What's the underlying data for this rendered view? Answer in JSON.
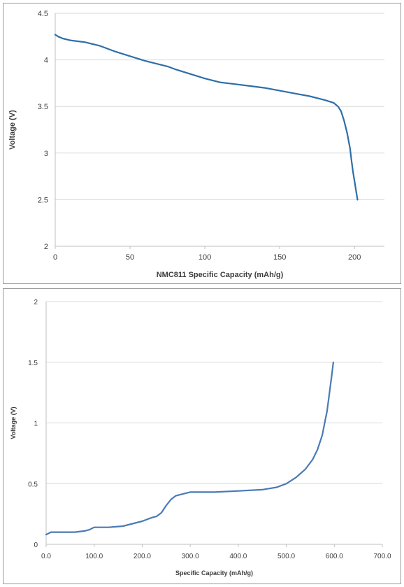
{
  "chart_data": [
    {
      "type": "line",
      "title": "",
      "xlabel": "NMC811 Specific Capacity (mAh/g)",
      "ylabel": "Voltage (V)",
      "xlim": [
        0,
        220
      ],
      "ylim": [
        2,
        4.5
      ],
      "xticks": [
        0,
        50,
        100,
        150,
        200
      ],
      "yticks": [
        2,
        2.5,
        3,
        3.5,
        4,
        4.5
      ],
      "xtick_labels": [
        "0",
        "50",
        "100",
        "150",
        "200"
      ],
      "ytick_labels": [
        "2",
        "2.5",
        "3",
        "3.5",
        "4",
        "4.5"
      ],
      "grid": true,
      "line_color": "#2e6fa8",
      "series": [
        {
          "x": [
            0,
            2,
            5,
            10,
            20,
            30,
            40,
            50,
            60,
            70,
            75,
            80,
            90,
            100,
            110,
            120,
            130,
            140,
            150,
            160,
            170,
            180,
            186,
            189,
            191,
            193,
            195,
            197,
            198,
            199,
            200,
            201,
            202
          ],
          "y": [
            4.27,
            4.25,
            4.23,
            4.21,
            4.19,
            4.15,
            4.09,
            4.04,
            3.99,
            3.95,
            3.93,
            3.9,
            3.85,
            3.8,
            3.76,
            3.74,
            3.72,
            3.7,
            3.67,
            3.64,
            3.61,
            3.57,
            3.54,
            3.5,
            3.45,
            3.35,
            3.22,
            3.05,
            2.92,
            2.8,
            2.7,
            2.6,
            2.5
          ]
        }
      ]
    },
    {
      "type": "line",
      "title": "",
      "xlabel": "Specific Capacity (mAh/g)",
      "ylabel": "Voltage (V)",
      "xlim": [
        0,
        700
      ],
      "ylim": [
        0,
        2
      ],
      "xticks": [
        0,
        100,
        200,
        300,
        400,
        500,
        600,
        700
      ],
      "yticks": [
        0,
        0.5,
        1,
        1.5,
        2
      ],
      "xtick_labels": [
        "0.0",
        "100.0",
        "200.0",
        "300.0",
        "400.0",
        "500.0",
        "600.0",
        "700.0"
      ],
      "ytick_labels": [
        "0",
        "0.5",
        "1",
        "1.5",
        "2"
      ],
      "grid": true,
      "line_color": "#4a7ab5",
      "series": [
        {
          "x": [
            0,
            10,
            30,
            60,
            80,
            90,
            100,
            130,
            160,
            180,
            200,
            220,
            230,
            240,
            250,
            260,
            270,
            290,
            300,
            350,
            400,
            450,
            480,
            500,
            520,
            540,
            555,
            565,
            575,
            580,
            585,
            590,
            595,
            598
          ],
          "y": [
            0.08,
            0.1,
            0.1,
            0.1,
            0.11,
            0.12,
            0.14,
            0.14,
            0.15,
            0.17,
            0.19,
            0.22,
            0.23,
            0.26,
            0.32,
            0.37,
            0.4,
            0.42,
            0.43,
            0.43,
            0.44,
            0.45,
            0.47,
            0.5,
            0.55,
            0.62,
            0.7,
            0.78,
            0.9,
            1.0,
            1.1,
            1.25,
            1.4,
            1.5
          ]
        }
      ]
    }
  ]
}
